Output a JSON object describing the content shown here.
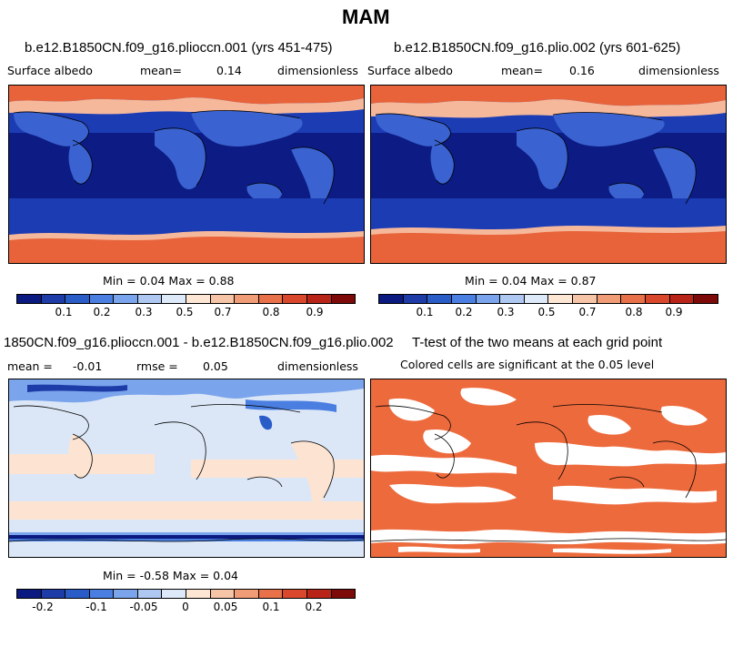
{
  "figure_title": "MAM",
  "panels": [
    {
      "title": "b.e12.B1850CN.f09_g16.plioccn.001 (yrs 451-475)",
      "variable": "Surface albedo",
      "stat_label": "mean=",
      "stat_value": "0.14",
      "units": "dimensionless",
      "minmax": "Min =   0.04 Max =   0.88",
      "colorbar_ticks": [
        "0.1",
        "0.2",
        "0.3",
        "0.5",
        "0.7",
        "0.8",
        "0.9"
      ]
    },
    {
      "title": "b.e12.B1850CN.f09_g16.plio.002 (yrs 601-625)",
      "variable": "Surface albedo",
      "stat_label": "mean=",
      "stat_value": "0.16",
      "units": "dimensionless",
      "minmax": "Min =   0.04 Max =   0.87",
      "colorbar_ticks": [
        "0.1",
        "0.2",
        "0.3",
        "0.5",
        "0.7",
        "0.8",
        "0.9"
      ]
    },
    {
      "title": "1850CN.f09_g16.plioccn.001 - b.e12.B1850CN.f09_g16.plio.002",
      "mean_label": "mean =",
      "mean_value": "-0.01",
      "rmse_label": "rmse =",
      "rmse_value": "0.05",
      "units": "dimensionless",
      "minmax": "Min =  -0.58 Max =   0.04",
      "colorbar_ticks": [
        "-0.2",
        "-0.1",
        "-0.05",
        "0",
        "0.05",
        "0.1",
        "0.2"
      ]
    },
    {
      "title": "T-test of the two means at each grid point",
      "subtitle": "Colored cells are significant at the 0.05 level"
    }
  ],
  "colorbar_colors": [
    "#0a1a80",
    "#1e3ca8",
    "#2a5cc8",
    "#4a7ee0",
    "#7aa4ec",
    "#aec8f2",
    "#dde8f8",
    "#fde6d4",
    "#f6c4a6",
    "#f09c76",
    "#e8714a",
    "#d9482c",
    "#b82418",
    "#7d0a08"
  ],
  "colors": {
    "ocean_low": "#0c1c84",
    "ocean_mid": "#1c3cb4",
    "land_mid": "#3a62d0",
    "ice_high": "#e8633a",
    "snow_mid": "#f6b89a",
    "diff_base": "#dbe7f7",
    "diff_pos": "#fde4d2",
    "sig": "#ed6a3c"
  }
}
